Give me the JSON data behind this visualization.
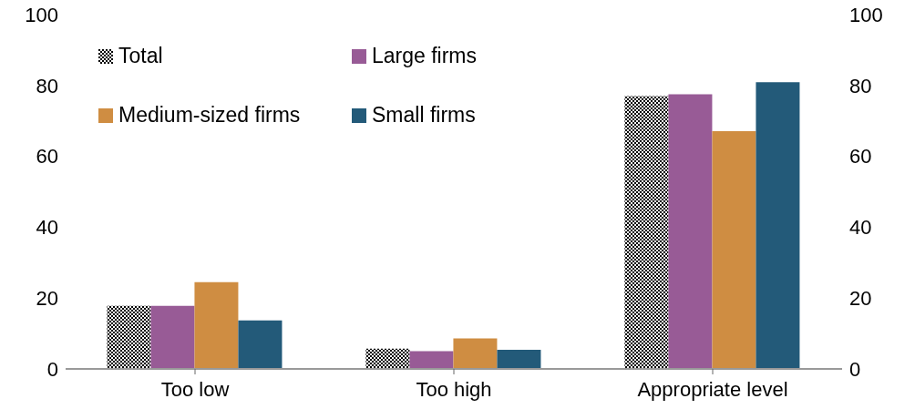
{
  "chart_data": {
    "type": "bar",
    "categories": [
      "Too low",
      "Too high",
      "Appropriate level"
    ],
    "series": [
      {
        "name": "Total",
        "color": "#000000",
        "values": [
          17.8,
          5.7,
          77
        ]
      },
      {
        "name": "Large firms",
        "color": "#985b96",
        "values": [
          17.8,
          5,
          77.5
        ]
      },
      {
        "name": "Medium-sized firms",
        "color": "#cf8d42",
        "values": [
          24.5,
          8.6,
          67.1
        ]
      },
      {
        "name": "Small firms",
        "color": "#235a79",
        "values": [
          13.7,
          5.4,
          80.9
        ]
      }
    ],
    "ylim": [
      0,
      100
    ],
    "yticks": [
      0,
      20,
      40,
      60,
      80,
      100
    ],
    "y2lim": [
      0,
      100
    ],
    "y2ticks": [
      0,
      20,
      40,
      60,
      80,
      100
    ],
    "grid": false,
    "legend": "top left"
  }
}
